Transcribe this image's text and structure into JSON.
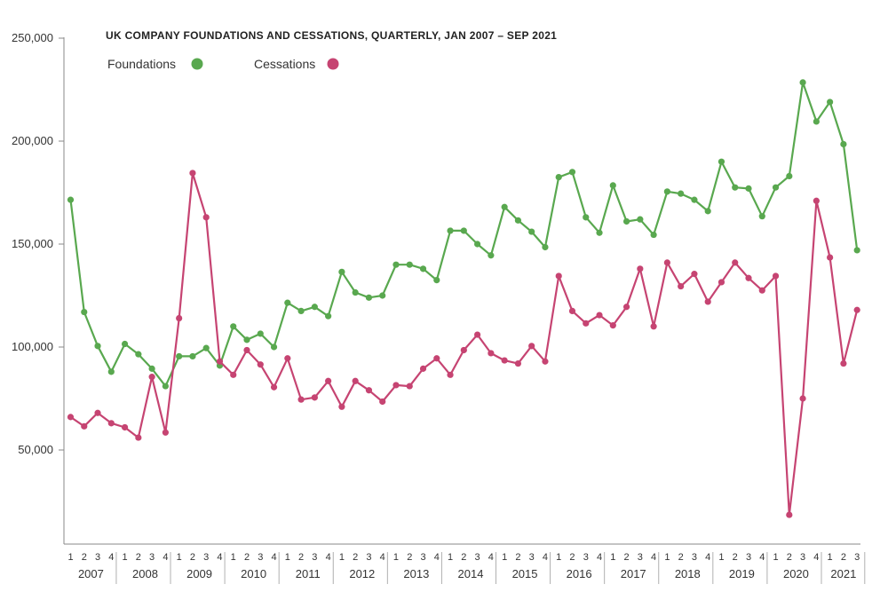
{
  "chart_data": {
    "type": "line",
    "title": "UK COMPANY FOUNDATIONS AND CESSATIONS, QUARTERLY, JAN 2007 – SEP 2021",
    "ylim": [
      0,
      250000
    ],
    "yticks": [
      {
        "value": 50000,
        "label": "50,000"
      },
      {
        "value": 100000,
        "label": "100,000"
      },
      {
        "value": 150000,
        "label": "150,000"
      },
      {
        "value": 200000,
        "label": "200,000"
      },
      {
        "value": 250000,
        "label": "250,000"
      }
    ],
    "years": [
      "2007",
      "2008",
      "2009",
      "2010",
      "2011",
      "2012",
      "2013",
      "2014",
      "2015",
      "2016",
      "2017",
      "2018",
      "2019",
      "2020",
      "2021"
    ],
    "quarter_labels": [
      "1",
      "2",
      "3",
      "4"
    ],
    "last_year_quarters": 3,
    "legend_position": "top-left",
    "series": [
      {
        "name": "Foundations",
        "color": "#59a84f",
        "values": [
          171500,
          117000,
          100500,
          88000,
          101500,
          96500,
          89500,
          81000,
          95500,
          95500,
          99500,
          91000,
          110000,
          103500,
          106500,
          100000,
          121500,
          117500,
          119500,
          115000,
          136500,
          126500,
          124000,
          125000,
          140000,
          140000,
          138000,
          132500,
          156500,
          156500,
          150000,
          144500,
          168000,
          161500,
          156000,
          148500,
          182500,
          185000,
          163000,
          155500,
          178500,
          161000,
          162000,
          154500,
          175500,
          174500,
          171500,
          166000,
          190000,
          177500,
          177000,
          163500,
          177500,
          183000,
          228500,
          209500,
          219000,
          198500,
          147000
        ]
      },
      {
        "name": "Cessations",
        "color": "#c64472",
        "values": [
          66000,
          61500,
          68000,
          63000,
          61000,
          56000,
          85500,
          58500,
          114000,
          184500,
          163000,
          93000,
          86500,
          98500,
          91500,
          80500,
          94500,
          74500,
          75500,
          83500,
          71000,
          83500,
          79000,
          73500,
          81500,
          81000,
          89500,
          94500,
          86500,
          98500,
          106000,
          97000,
          93500,
          92000,
          100500,
          93000,
          134500,
          117500,
          111500,
          115500,
          110500,
          119500,
          138000,
          110000,
          141000,
          129500,
          135500,
          122000,
          131500,
          141000,
          133500,
          127500,
          134500,
          18500,
          75000,
          171000,
          143500,
          92000,
          118000
        ]
      }
    ]
  }
}
